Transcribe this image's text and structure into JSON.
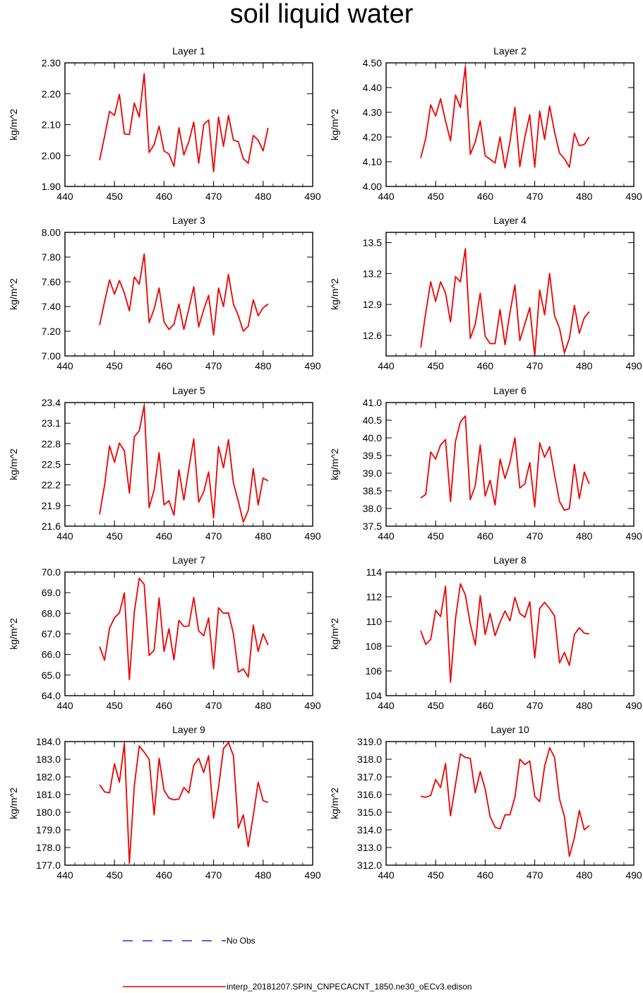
{
  "page": {
    "title": "soil liquid water"
  },
  "legend": {
    "obs_label": "No Obs",
    "obs_color": "#0000cc",
    "model_label": "interp_20181207.SPIN_CNPECACNT_1850.ne30_oECv3.edison",
    "model_color": "#ee0000"
  },
  "chart_data": [
    {
      "type": "line",
      "title": "Layer 1",
      "ylabel": "kg/m^2",
      "xlim": [
        440,
        490
      ],
      "xticks": [
        "440",
        "450",
        "460",
        "470",
        "480",
        "490"
      ],
      "ylim": [
        1.9,
        2.3
      ],
      "yticks": [
        "1.90",
        "2.00",
        "2.10",
        "2.20",
        "2.30"
      ],
      "x": [
        447,
        448,
        449,
        450,
        451,
        452,
        453,
        454,
        455,
        456,
        457,
        458,
        459,
        460,
        461,
        462,
        463,
        464,
        465,
        466,
        467,
        468,
        469,
        470,
        471,
        472,
        473,
        474,
        475,
        476,
        477,
        478,
        479,
        480,
        481
      ],
      "series": [
        {
          "name": "model",
          "values": [
            1.985,
            2.062,
            2.143,
            2.13,
            2.198,
            2.07,
            2.068,
            2.17,
            2.125,
            2.265,
            2.01,
            2.035,
            2.095,
            2.015,
            2.005,
            1.965,
            2.09,
            2.002,
            2.045,
            2.108,
            1.975,
            2.1,
            2.115,
            1.948,
            2.125,
            2.03,
            2.13,
            2.05,
            2.045,
            1.99,
            1.975,
            2.065,
            2.05,
            2.015,
            2.09
          ]
        }
      ]
    },
    {
      "type": "line",
      "title": "Layer 2",
      "ylabel": "kg/m^2",
      "xlim": [
        440,
        490
      ],
      "xticks": [
        "440",
        "450",
        "460",
        "470",
        "480",
        "490"
      ],
      "ylim": [
        4.0,
        4.5
      ],
      "yticks": [
        "4.00",
        "4.10",
        "4.20",
        "4.30",
        "4.40",
        "4.50"
      ],
      "x": [
        447,
        448,
        449,
        450,
        451,
        452,
        453,
        454,
        455,
        456,
        457,
        458,
        459,
        460,
        461,
        462,
        463,
        464,
        465,
        466,
        467,
        468,
        469,
        470,
        471,
        472,
        473,
        474,
        475,
        476,
        477,
        478,
        479,
        480,
        481
      ],
      "series": [
        {
          "name": "model",
          "values": [
            4.115,
            4.195,
            4.33,
            4.285,
            4.355,
            4.265,
            4.185,
            4.37,
            4.32,
            4.485,
            4.13,
            4.18,
            4.265,
            4.125,
            4.11,
            4.095,
            4.2,
            4.075,
            4.18,
            4.32,
            4.08,
            4.2,
            4.29,
            4.078,
            4.305,
            4.19,
            4.325,
            4.22,
            4.135,
            4.112,
            4.078,
            4.215,
            4.165,
            4.17,
            4.2
          ]
        }
      ]
    },
    {
      "type": "line",
      "title": "Layer 3",
      "ylabel": "kg/m^2",
      "xlim": [
        440,
        490
      ],
      "xticks": [
        "440",
        "450",
        "460",
        "470",
        "480",
        "490"
      ],
      "ylim": [
        7.0,
        8.0
      ],
      "yticks": [
        "7.00",
        "7.20",
        "7.40",
        "7.60",
        "7.80",
        "8.00"
      ],
      "x": [
        447,
        448,
        449,
        450,
        451,
        452,
        453,
        454,
        455,
        456,
        457,
        458,
        459,
        460,
        461,
        462,
        463,
        464,
        465,
        466,
        467,
        468,
        469,
        470,
        471,
        472,
        473,
        474,
        475,
        476,
        477,
        478,
        479,
        480,
        481
      ],
      "series": [
        {
          "name": "model",
          "values": [
            7.25,
            7.44,
            7.615,
            7.5,
            7.61,
            7.51,
            7.365,
            7.64,
            7.58,
            7.825,
            7.27,
            7.38,
            7.55,
            7.275,
            7.215,
            7.255,
            7.42,
            7.215,
            7.38,
            7.56,
            7.235,
            7.375,
            7.49,
            7.17,
            7.55,
            7.4,
            7.66,
            7.42,
            7.325,
            7.2,
            7.24,
            7.455,
            7.325,
            7.39,
            7.42
          ]
        }
      ]
    },
    {
      "type": "line",
      "title": "Layer 4",
      "ylabel": "kg/m^2",
      "xlim": [
        440,
        490
      ],
      "xticks": [
        "440",
        "450",
        "460",
        "470",
        "480",
        "490"
      ],
      "ylim": [
        12.4,
        13.6
      ],
      "yticks": [
        "12.6",
        "12.9",
        "13.2",
        "13.5"
      ],
      "x": [
        447,
        448,
        449,
        450,
        451,
        452,
        453,
        454,
        455,
        456,
        457,
        458,
        459,
        460,
        461,
        462,
        463,
        464,
        465,
        466,
        467,
        468,
        469,
        470,
        471,
        472,
        473,
        474,
        475,
        476,
        477,
        478,
        479,
        480,
        481
      ],
      "series": [
        {
          "name": "model",
          "values": [
            12.48,
            12.82,
            13.12,
            12.93,
            13.12,
            13.01,
            12.73,
            13.17,
            13.12,
            13.44,
            12.57,
            12.71,
            13.01,
            12.59,
            12.52,
            12.52,
            12.85,
            12.51,
            12.82,
            13.09,
            12.55,
            12.71,
            12.87,
            12.4,
            13.04,
            12.8,
            13.2,
            12.79,
            12.67,
            12.43,
            12.57,
            12.89,
            12.62,
            12.77,
            12.83
          ]
        }
      ]
    },
    {
      "type": "line",
      "title": "Layer 5",
      "ylabel": "kg/m^2",
      "xlim": [
        440,
        490
      ],
      "xticks": [
        "440",
        "450",
        "460",
        "470",
        "480",
        "490"
      ],
      "ylim": [
        21.6,
        23.4
      ],
      "yticks": [
        "21.6",
        "21.9",
        "22.2",
        "22.5",
        "22.8",
        "23.1",
        "23.4"
      ],
      "x": [
        447,
        448,
        449,
        450,
        451,
        452,
        453,
        454,
        455,
        456,
        457,
        458,
        459,
        460,
        461,
        462,
        463,
        464,
        465,
        466,
        467,
        468,
        469,
        470,
        471,
        472,
        473,
        474,
        475,
        476,
        477,
        478,
        479,
        480,
        481
      ],
      "series": [
        {
          "name": "model",
          "values": [
            21.77,
            22.2,
            22.77,
            22.53,
            22.81,
            22.7,
            22.08,
            22.9,
            22.99,
            23.36,
            21.87,
            22.13,
            22.67,
            21.91,
            21.97,
            21.76,
            22.42,
            21.98,
            22.44,
            22.87,
            21.95,
            22.1,
            22.39,
            21.72,
            22.76,
            22.45,
            22.86,
            22.23,
            21.96,
            21.66,
            21.83,
            22.44,
            21.91,
            22.3,
            22.26
          ]
        }
      ]
    },
    {
      "type": "line",
      "title": "Layer 6",
      "ylabel": "kg/m^2",
      "xlim": [
        440,
        490
      ],
      "xticks": [
        "440",
        "450",
        "460",
        "470",
        "480",
        "490"
      ],
      "ylim": [
        37.5,
        41.0
      ],
      "yticks": [
        "37.5",
        "38.0",
        "38.5",
        "39.0",
        "39.5",
        "40.0",
        "40.5",
        "41.0"
      ],
      "x": [
        447,
        448,
        449,
        450,
        451,
        452,
        453,
        454,
        455,
        456,
        457,
        458,
        459,
        460,
        461,
        462,
        463,
        464,
        465,
        466,
        467,
        468,
        469,
        470,
        471,
        472,
        473,
        474,
        475,
        476,
        477,
        478,
        479,
        480,
        481
      ],
      "series": [
        {
          "name": "model",
          "values": [
            38.3,
            38.4,
            39.6,
            39.4,
            39.8,
            39.95,
            38.2,
            39.9,
            40.45,
            40.62,
            38.25,
            38.65,
            39.8,
            38.35,
            38.8,
            38.1,
            39.4,
            38.85,
            39.3,
            40,
            38.58,
            38.7,
            39.3,
            38.05,
            39.86,
            39.45,
            39.75,
            38.95,
            38.2,
            37.95,
            38.0,
            39.25,
            38.28,
            39.03,
            38.7
          ]
        }
      ]
    },
    {
      "type": "line",
      "title": "Layer 7",
      "ylabel": "kg/m^2",
      "xlim": [
        440,
        490
      ],
      "xticks": [
        "440",
        "450",
        "460",
        "470",
        "480",
        "490"
      ],
      "ylim": [
        64.0,
        70.0
      ],
      "yticks": [
        "64.0",
        "65.0",
        "66.0",
        "67.0",
        "68.0",
        "69.0",
        "70.0"
      ],
      "x": [
        447,
        448,
        449,
        450,
        451,
        452,
        453,
        454,
        455,
        456,
        457,
        458,
        459,
        460,
        461,
        462,
        463,
        464,
        465,
        466,
        467,
        468,
        469,
        470,
        471,
        472,
        473,
        474,
        475,
        476,
        477,
        478,
        479,
        480,
        481
      ],
      "series": [
        {
          "name": "model",
          "values": [
            66.38,
            65.72,
            67.28,
            67.78,
            68.02,
            68.99,
            64.78,
            68.06,
            69.7,
            69.4,
            65.95,
            66.22,
            68.75,
            66.15,
            67.25,
            65.74,
            67.65,
            67.36,
            67.38,
            68.77,
            67.14,
            66.91,
            67.77,
            65.3,
            68.27,
            68.0,
            68.02,
            67.0,
            65.14,
            65.3,
            64.9,
            67.43,
            66.15,
            67.0,
            66.46
          ]
        }
      ]
    },
    {
      "type": "line",
      "title": "Layer 8",
      "ylabel": "kg/m^2",
      "xlim": [
        440,
        490
      ],
      "xticks": [
        "440",
        "450",
        "460",
        "470",
        "480",
        "490"
      ],
      "ylim": [
        104,
        114
      ],
      "yticks": [
        "104",
        "106",
        "108",
        "110",
        "112",
        "114"
      ],
      "x": [
        447,
        448,
        449,
        450,
        451,
        452,
        453,
        454,
        455,
        456,
        457,
        458,
        459,
        460,
        461,
        462,
        463,
        464,
        465,
        466,
        467,
        468,
        469,
        470,
        471,
        472,
        473,
        474,
        475,
        476,
        477,
        478,
        479,
        480,
        481
      ],
      "series": [
        {
          "name": "model",
          "values": [
            109.25,
            108.15,
            108.55,
            110.9,
            110.4,
            112.85,
            105.1,
            110.2,
            113.05,
            112.15,
            109.8,
            108.1,
            112.1,
            108.95,
            110.65,
            108.85,
            109.95,
            110.85,
            110.05,
            111.95,
            110.65,
            110.35,
            111.6,
            107.05,
            111.05,
            111.55,
            111.05,
            110.45,
            106.65,
            107.5,
            106.45,
            108.95,
            109.5,
            109.05,
            109.0
          ]
        }
      ]
    },
    {
      "type": "line",
      "title": "Layer 9",
      "ylabel": "kg/m^2",
      "xlim": [
        440,
        490
      ],
      "xticks": [
        "440",
        "450",
        "460",
        "470",
        "480",
        "490"
      ],
      "ylim": [
        177.0,
        184.0
      ],
      "yticks": [
        "177.0",
        "178.0",
        "179.0",
        "180.0",
        "181.0",
        "182.0",
        "183.0",
        "184.0"
      ],
      "x": [
        447,
        448,
        449,
        450,
        451,
        452,
        453,
        454,
        455,
        456,
        457,
        458,
        459,
        460,
        461,
        462,
        463,
        464,
        465,
        466,
        467,
        468,
        469,
        470,
        471,
        472,
        473,
        474,
        475,
        476,
        477,
        478,
        479,
        480,
        481
      ],
      "series": [
        {
          "name": "model",
          "values": [
            181.55,
            181.15,
            181.1,
            182.75,
            181.7,
            183.9,
            177.1,
            181.5,
            183.75,
            183.4,
            183.0,
            179.85,
            183.05,
            181.25,
            180.8,
            180.7,
            180.75,
            181.4,
            181.1,
            182.65,
            183.05,
            182.25,
            183.2,
            179.65,
            181.4,
            183.6,
            183.95,
            183.2,
            179.1,
            179.85,
            178.05,
            179.8,
            181.7,
            180.65,
            180.55
          ]
        }
      ]
    },
    {
      "type": "line",
      "title": "Layer 10",
      "ylabel": "kg/m^2",
      "xlim": [
        440,
        490
      ],
      "xticks": [
        "440",
        "450",
        "460",
        "470",
        "480",
        "490"
      ],
      "ylim": [
        312.0,
        319.0
      ],
      "yticks": [
        "312.0",
        "313.0",
        "314.0",
        "315.0",
        "316.0",
        "317.0",
        "318.0",
        "319.0"
      ],
      "x": [
        447,
        448,
        449,
        450,
        451,
        452,
        453,
        454,
        455,
        456,
        457,
        458,
        459,
        460,
        461,
        462,
        463,
        464,
        465,
        466,
        467,
        468,
        469,
        470,
        471,
        472,
        473,
        474,
        475,
        476,
        477,
        478,
        479,
        480,
        481
      ],
      "series": [
        {
          "name": "model",
          "values": [
            315.9,
            315.85,
            315.95,
            316.85,
            316.4,
            317.75,
            314.8,
            316.55,
            318.3,
            318.1,
            318.05,
            316.1,
            317.3,
            316.3,
            314.75,
            314.15,
            314.05,
            314.85,
            314.85,
            315.85,
            318.0,
            317.7,
            317.9,
            315.9,
            315.6,
            317.6,
            318.65,
            318.1,
            315.75,
            314.75,
            312.5,
            313.55,
            315.1,
            314.0,
            314.25
          ]
        }
      ]
    }
  ]
}
